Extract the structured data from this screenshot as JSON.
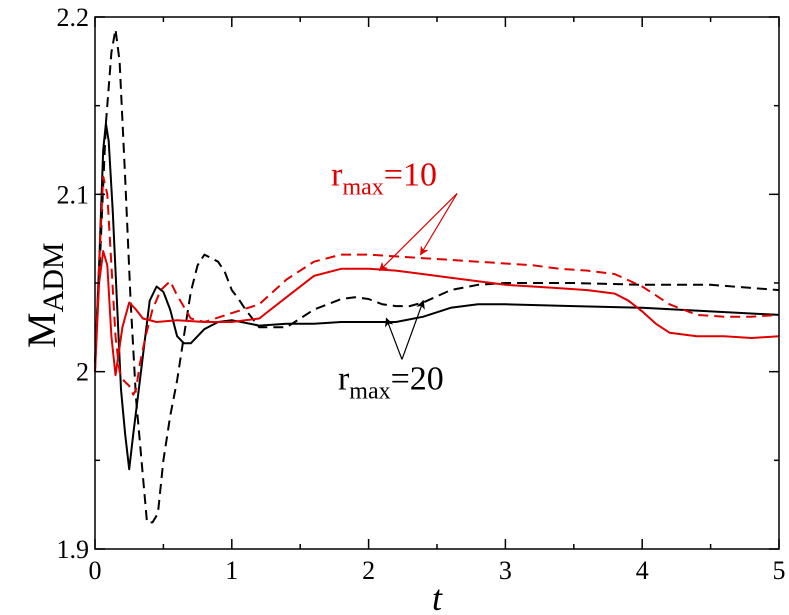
{
  "chart_data": {
    "type": "line",
    "xlabel": "t",
    "ylabel": {
      "main": "M",
      "sub": "ADM"
    },
    "xlim": [
      0,
      5
    ],
    "ylim": [
      1.9,
      2.2
    ],
    "xticks": [
      {
        "value": 0,
        "label": "0"
      },
      {
        "value": 1,
        "label": "1"
      },
      {
        "value": 2,
        "label": "2"
      },
      {
        "value": 3,
        "label": "3"
      },
      {
        "value": 4,
        "label": "4"
      },
      {
        "value": 5,
        "label": "5"
      }
    ],
    "yticks": [
      {
        "value": 1.9,
        "label": "1.9"
      },
      {
        "value": 2.0,
        "label": "2"
      },
      {
        "value": 2.1,
        "label": "2.1"
      },
      {
        "value": 2.2,
        "label": "2.2"
      }
    ],
    "grid": false,
    "series": [
      {
        "color": "#000000",
        "dash": "solid",
        "x": [
          0,
          0.03,
          0.06,
          0.08,
          0.1,
          0.13,
          0.16,
          0.19,
          0.22,
          0.25,
          0.28,
          0.32,
          0.36,
          0.4,
          0.45,
          0.5,
          0.55,
          0.6,
          0.65,
          0.7,
          0.8,
          0.9,
          1.0,
          1.2,
          1.4,
          1.6,
          1.8,
          2.0,
          2.2,
          2.4,
          2.6,
          2.8,
          3.0,
          3.5,
          4.0,
          4.5,
          5.0
        ],
        "y": [
          2.005,
          2.06,
          2.125,
          2.14,
          2.13,
          2.09,
          2.04,
          1.99,
          1.965,
          1.945,
          1.965,
          1.99,
          2.015,
          2.04,
          2.048,
          2.045,
          2.035,
          2.02,
          2.016,
          2.016,
          2.024,
          2.028,
          2.029,
          2.026,
          2.027,
          2.027,
          2.028,
          2.028,
          2.028,
          2.031,
          2.036,
          2.038,
          2.038,
          2.037,
          2.036,
          2.034,
          2.032
        ]
      },
      {
        "color": "#000000",
        "dash": "dashed",
        "x": [
          0,
          0.04,
          0.08,
          0.12,
          0.15,
          0.18,
          0.22,
          0.26,
          0.3,
          0.34,
          0.38,
          0.42,
          0.46,
          0.5,
          0.55,
          0.6,
          0.65,
          0.7,
          0.75,
          0.8,
          0.85,
          0.9,
          0.95,
          1.0,
          1.05,
          1.1,
          1.2,
          1.3,
          1.4,
          1.5,
          1.6,
          1.7,
          1.8,
          1.9,
          2.0,
          2.1,
          2.2,
          2.3,
          2.4,
          2.6,
          2.8,
          3.0,
          3.5,
          4.0,
          4.5,
          5.0
        ],
        "y": [
          2.005,
          2.07,
          2.14,
          2.18,
          2.193,
          2.175,
          2.11,
          2.04,
          1.985,
          1.95,
          1.915,
          1.915,
          1.92,
          1.95,
          1.975,
          1.995,
          2.02,
          2.045,
          2.06,
          2.066,
          2.064,
          2.062,
          2.056,
          2.046,
          2.041,
          2.035,
          2.025,
          2.025,
          2.025,
          2.03,
          2.035,
          2.038,
          2.041,
          2.042,
          2.041,
          2.038,
          2.037,
          2.037,
          2.039,
          2.046,
          2.049,
          2.05,
          2.05,
          2.049,
          2.049,
          2.046
        ]
      },
      {
        "color": "#e00000",
        "dash": "solid",
        "x": [
          0,
          0.03,
          0.06,
          0.09,
          0.12,
          0.15,
          0.2,
          0.25,
          0.3,
          0.35,
          0.45,
          0.6,
          0.8,
          1.0,
          1.2,
          1.4,
          1.6,
          1.8,
          2.0,
          2.2,
          2.4,
          2.6,
          2.8,
          3.0,
          3.2,
          3.4,
          3.6,
          3.8,
          3.9,
          4.0,
          4.1,
          4.2,
          4.4,
          4.6,
          4.8,
          5.0
        ],
        "y": [
          2.0,
          2.05,
          2.068,
          2.06,
          2.02,
          1.998,
          2.025,
          2.039,
          2.035,
          2.03,
          2.028,
          2.029,
          2.028,
          2.028,
          2.03,
          2.042,
          2.054,
          2.058,
          2.058,
          2.057,
          2.055,
          2.053,
          2.051,
          2.049,
          2.048,
          2.047,
          2.046,
          2.044,
          2.04,
          2.034,
          2.027,
          2.022,
          2.02,
          2.02,
          2.019,
          2.02
        ]
      },
      {
        "color": "#e00000",
        "dash": "dashed",
        "x": [
          0,
          0.03,
          0.06,
          0.09,
          0.12,
          0.15,
          0.18,
          0.21,
          0.25,
          0.28,
          0.3,
          0.33,
          0.37,
          0.42,
          0.48,
          0.55,
          0.6,
          0.7,
          0.8,
          1.0,
          1.2,
          1.4,
          1.6,
          1.8,
          2.0,
          2.2,
          2.4,
          2.6,
          2.8,
          3.0,
          3.2,
          3.4,
          3.6,
          3.8,
          4.0,
          4.2,
          4.4,
          4.6,
          4.8,
          5.0
        ],
        "y": [
          2.0,
          2.06,
          2.11,
          2.1,
          2.06,
          2.02,
          2.0,
          1.995,
          1.992,
          1.987,
          1.99,
          2.005,
          2.02,
          2.035,
          2.046,
          2.051,
          2.043,
          2.03,
          2.028,
          2.033,
          2.038,
          2.052,
          2.062,
          2.066,
          2.066,
          2.065,
          2.064,
          2.063,
          2.062,
          2.061,
          2.06,
          2.058,
          2.057,
          2.055,
          2.048,
          2.038,
          2.032,
          2.031,
          2.031,
          2.032
        ]
      }
    ],
    "annotations": [
      {
        "label": {
          "main": "r",
          "sub": "max",
          "suffix": "=10"
        },
        "color": "#e00000",
        "x": 2.15,
        "y": 2.105,
        "arrows_to": [
          {
            "x": 2.08,
            "y": 2.057
          },
          {
            "x": 2.38,
            "y": 2.066
          }
        ]
      },
      {
        "label": {
          "main": "r",
          "sub": "max",
          "suffix": "=20"
        },
        "color": "#000000",
        "x": 2.2,
        "y": 1.99,
        "arrows_to": [
          {
            "x": 2.13,
            "y": 2.03
          },
          {
            "x": 2.4,
            "y": 2.04
          }
        ]
      }
    ]
  }
}
